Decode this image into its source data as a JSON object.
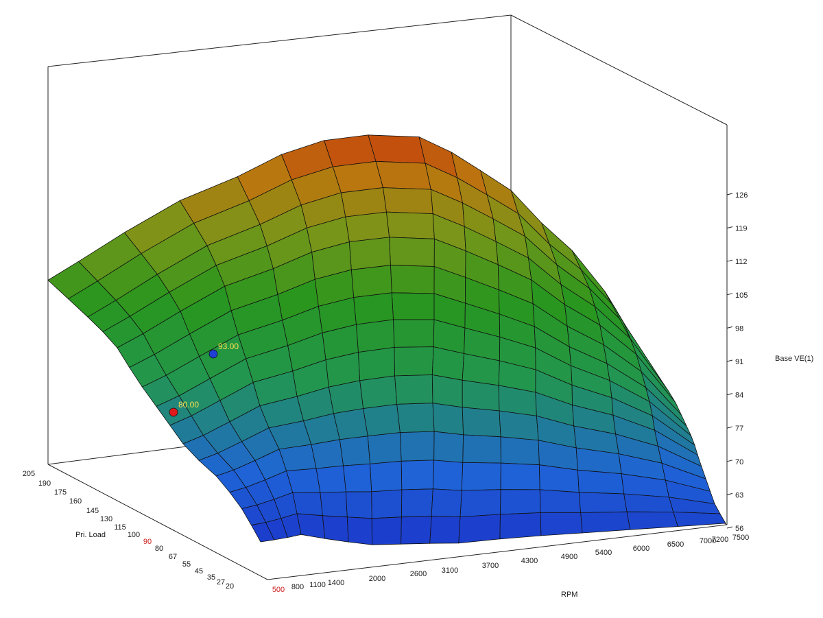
{
  "chart_data": {
    "type": "surface",
    "title": "",
    "xlabel": "RPM",
    "ylabel": "Pri. Load",
    "zlabel": "Base VE(1)",
    "x_ticks": [
      "500",
      "800",
      "1100",
      "1400",
      "2000",
      "2600",
      "3100",
      "3700",
      "4300",
      "4900",
      "5400",
      "6000",
      "6500",
      "7000",
      "7200",
      "7500"
    ],
    "y_ticks": [
      "20",
      "27",
      "35",
      "45",
      "55",
      "67",
      "80",
      "90",
      "100",
      "115",
      "130",
      "145",
      "160",
      "175",
      "190",
      "205"
    ],
    "z_ticks": [
      "56",
      "63",
      "70",
      "77",
      "84",
      "91",
      "98",
      "105",
      "112",
      "119",
      "126"
    ],
    "zlim": [
      56,
      133
    ],
    "highlight": {
      "x_tick": "500",
      "y_tick": "90"
    },
    "cursors": [
      {
        "value_label": "93.00",
        "value": 93,
        "color": "#1f3fd6"
      },
      {
        "value_label": "80.00",
        "value": 80,
        "color": "#e01a1a"
      }
    ],
    "colormap": [
      "#1a2fc8",
      "#1f7bd8",
      "#1e9c3a",
      "#57a023",
      "#b8860f",
      "#c83c0c",
      "#c01c0c"
    ],
    "grid": true
  }
}
